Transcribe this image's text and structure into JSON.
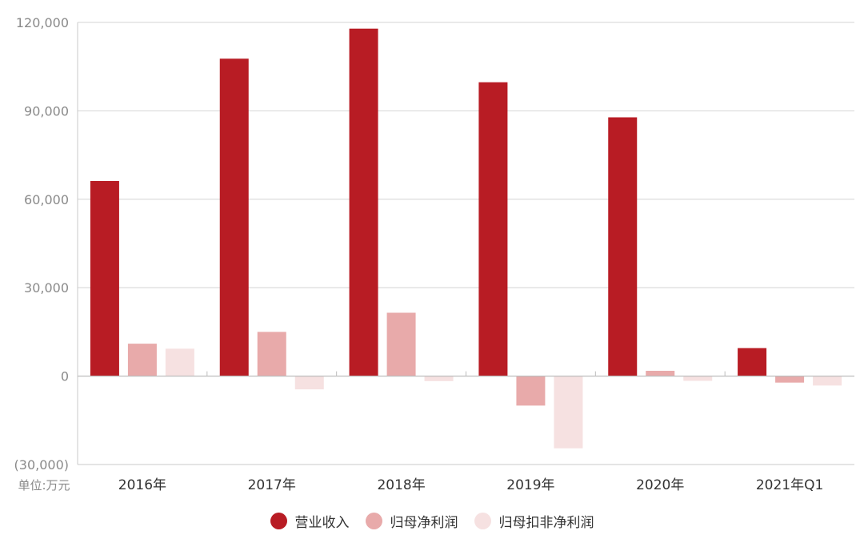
{
  "chart_data": {
    "type": "bar",
    "unit_label": "单位:万元",
    "categories": [
      "2016年",
      "2017年",
      "2018年",
      "2019年",
      "2020年",
      "2021年Q1"
    ],
    "series": [
      {
        "name": "营业收入",
        "color": "#B81C24",
        "values": [
          66200,
          107700,
          117900,
          99700,
          87800,
          9500
        ]
      },
      {
        "name": "归母净利润",
        "color": "#E8AAAA",
        "values": [
          11000,
          15000,
          21500,
          -10000,
          1800,
          -2200
        ]
      },
      {
        "name": "归母扣非净利润",
        "color": "#F6E1E1",
        "values": [
          9300,
          -4500,
          -1700,
          -24500,
          -1600,
          -3200
        ]
      }
    ],
    "ylim": [
      -30000,
      120000
    ],
    "yticks": [
      120000,
      90000,
      60000,
      30000,
      0,
      -30000
    ],
    "ytick_labels": [
      "120,000",
      "90,000",
      "60,000",
      "30,000",
      "0",
      "(30,000)"
    ],
    "grid": true,
    "legend_position": "bottom-center"
  }
}
